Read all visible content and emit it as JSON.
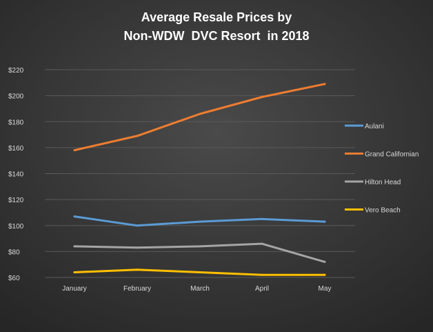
{
  "chart_data": {
    "type": "line",
    "title_lines": [
      "Average Resale Prices by",
      "Non-WDW  DVC Resort  in 2018"
    ],
    "xlabel": "",
    "ylabel": "",
    "categories": [
      "January",
      "February",
      "March",
      "April",
      "May"
    ],
    "ylim": [
      60,
      220
    ],
    "yticks": [
      60,
      80,
      100,
      120,
      140,
      160,
      180,
      200,
      220
    ],
    "ytick_labels": [
      "$60",
      "$80",
      "$100",
      "$120",
      "$140",
      "$160",
      "$180",
      "$200",
      "$220"
    ],
    "grid": true,
    "legend_position": "right",
    "series": [
      {
        "name": "Aulani",
        "color": "#5b9bd5",
        "values": [
          107,
          100,
          103,
          105,
          103
        ]
      },
      {
        "name": "Grand Californian",
        "color": "#ed7d31",
        "values": [
          158,
          169,
          186,
          199,
          209
        ]
      },
      {
        "name": "Hilton Head",
        "color": "#a5a5a5",
        "values": [
          84,
          83,
          84,
          86,
          72
        ]
      },
      {
        "name": "Vero Beach",
        "color": "#ffc000",
        "values": [
          64,
          66,
          64,
          62,
          62
        ]
      }
    ]
  }
}
